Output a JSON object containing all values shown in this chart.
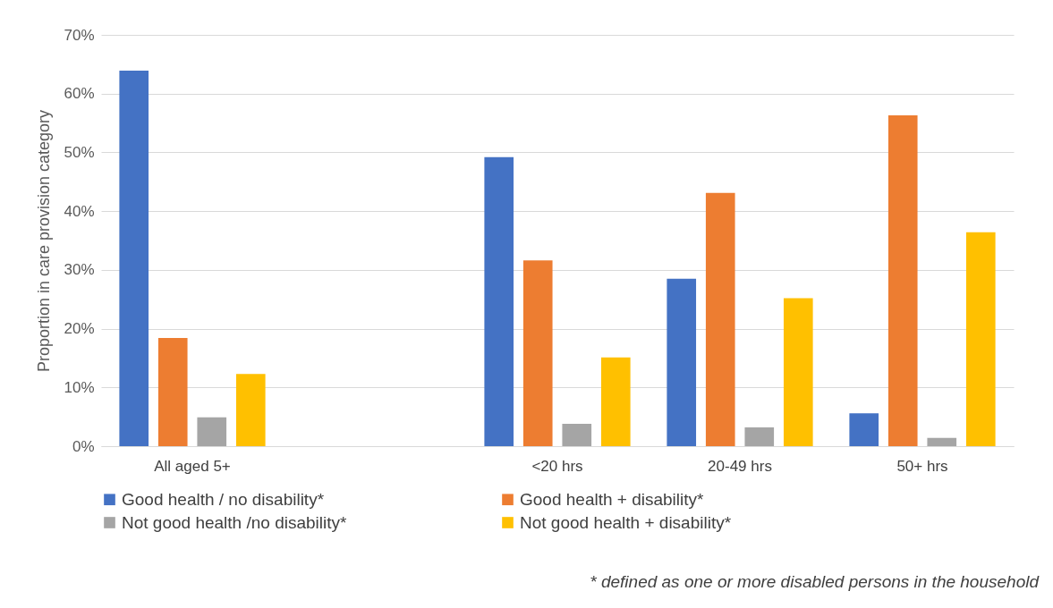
{
  "chart_data": {
    "type": "bar",
    "ylabel": "Proportion in care provision category",
    "categories": [
      "All aged 5+",
      null,
      "<20 hrs",
      "20-49 hrs",
      "50+ hrs"
    ],
    "series": [
      {
        "name": "Good health / no disability*",
        "color": "#4472c4",
        "values": [
          63.9,
          null,
          49.2,
          28.5,
          5.6
        ]
      },
      {
        "name": "Good health + disability*",
        "color": "#ed7d31",
        "values": [
          18.4,
          null,
          31.6,
          43.1,
          56.3
        ]
      },
      {
        "name": "Not good health /no disability*",
        "color": "#a5a5a5",
        "values": [
          4.9,
          null,
          3.8,
          3.2,
          1.4
        ]
      },
      {
        "name": "Not good health + disability*",
        "color": "#ffc000",
        "values": [
          12.3,
          null,
          15.1,
          25.2,
          36.4
        ]
      }
    ],
    "ylim": [
      0,
      70
    ],
    "yticks": [
      {
        "value": 0,
        "label": "0%"
      },
      {
        "value": 10,
        "label": "10%"
      },
      {
        "value": 20,
        "label": "20%"
      },
      {
        "value": 30,
        "label": "30%"
      },
      {
        "value": 40,
        "label": "40%"
      },
      {
        "value": 50,
        "label": "50%"
      },
      {
        "value": 60,
        "label": "60%"
      },
      {
        "value": 70,
        "label": "70%"
      }
    ],
    "grid": "y",
    "legend": "bottom",
    "annotations": [
      "* defined as one or more disabled persons in the household"
    ]
  }
}
